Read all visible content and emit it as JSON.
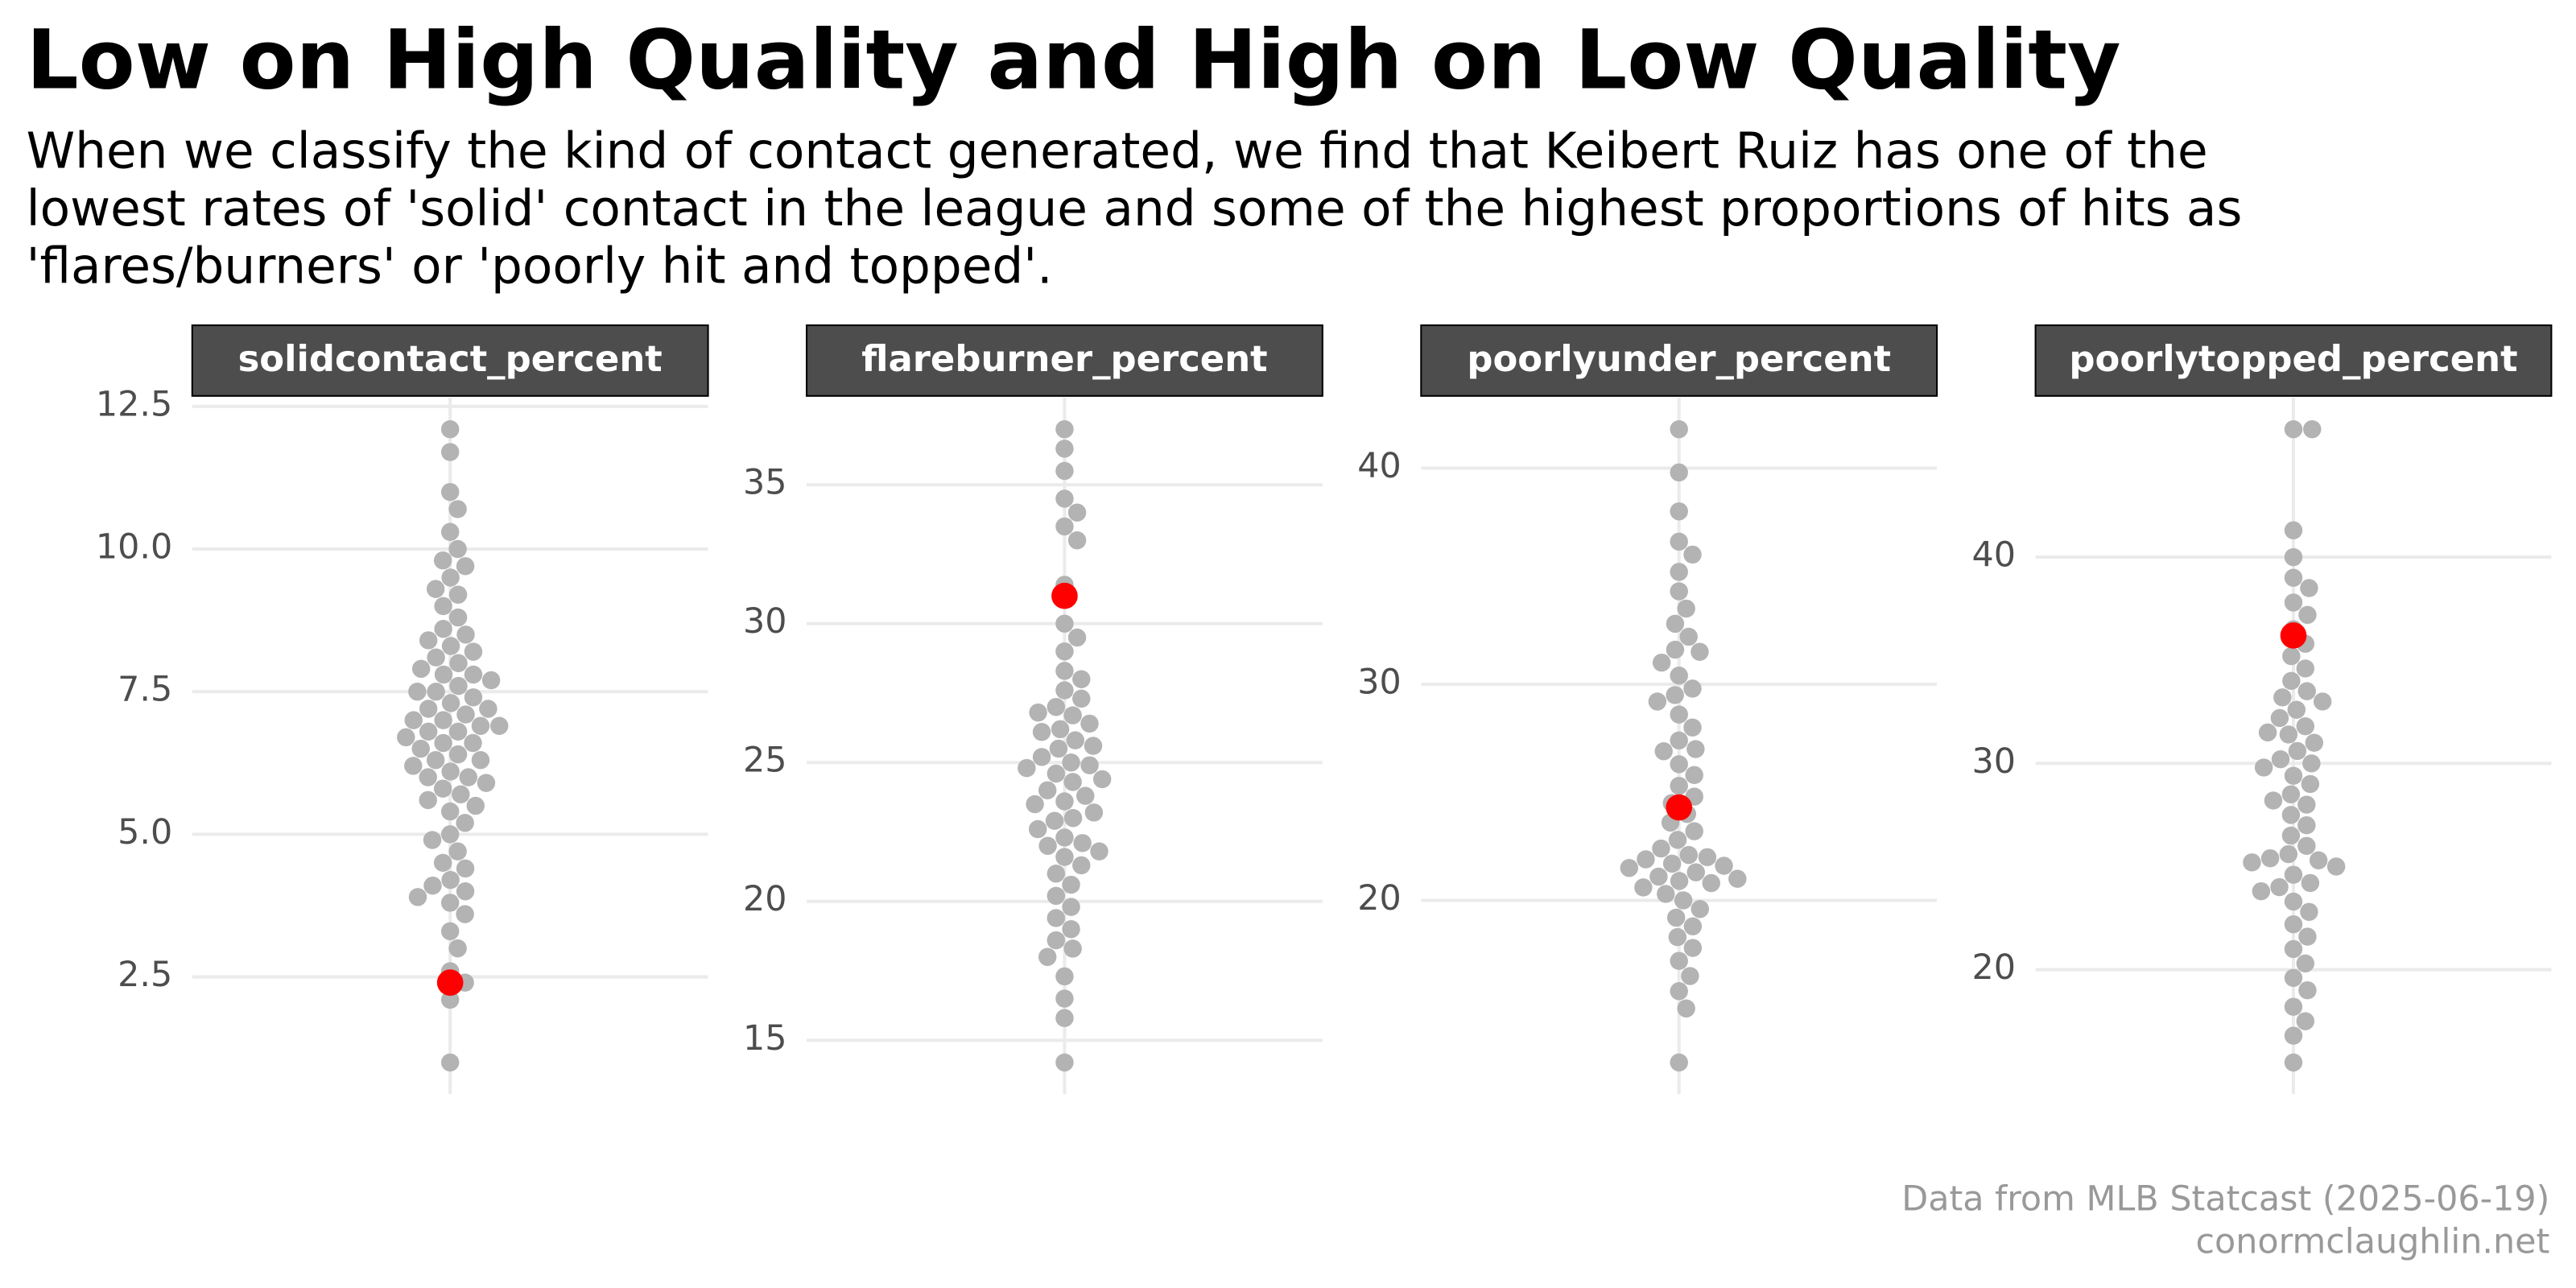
{
  "title": "Low on High Quality and High on Low Quality",
  "subtitle": [
    "When we classify the kind of contact generated, we find that Keibert Ruiz has one of the",
    "lowest rates of 'solid' contact in the league and some of the highest proportions of hits as",
    "'flares/burners' or 'poorly hit and topped'."
  ],
  "caption": [
    "Data from MLB Statcast (2025-06-19)",
    "conormclaughlin.net"
  ],
  "chart_data": [
    {
      "type": "beeswarm",
      "title": "solidcontact_percent",
      "color": "#b3b3b3",
      "ylim": [
        0.445,
        12.655
      ],
      "yticks": [
        2.5,
        {
          "value": 5,
          "label": "5.0"
        },
        7.5,
        {
          "value": 10,
          "label": "10.0"
        },
        12.5
      ],
      "grid": true,
      "values": [
        1.0,
        2.1,
        2.4,
        2.6,
        3.0,
        3.3,
        3.6,
        3.8,
        3.9,
        4.0,
        4.1,
        4.2,
        4.4,
        4.5,
        4.7,
        4.9,
        5.0,
        5.2,
        5.4,
        5.5,
        5.6,
        5.7,
        5.8,
        5.9,
        6.0,
        6.0,
        6.1,
        6.2,
        6.3,
        6.3,
        6.4,
        6.5,
        6.6,
        6.6,
        6.7,
        6.8,
        6.8,
        6.9,
        6.9,
        7.0,
        7.0,
        7.1,
        7.2,
        7.2,
        7.3,
        7.4,
        7.5,
        7.5,
        7.6,
        7.7,
        7.8,
        7.8,
        7.9,
        8.0,
        8.1,
        8.2,
        8.3,
        8.4,
        8.5,
        8.6,
        8.8,
        9.0,
        9.2,
        9.3,
        9.5,
        9.7,
        9.8,
        10.0,
        10.3,
        10.7,
        11.0,
        11.7,
        12.1
      ],
      "highlight": {
        "value": 2.4,
        "color": "#ff0000"
      }
    },
    {
      "type": "beeswarm",
      "title": "flareburner_percent",
      "color": "#b3b3b3",
      "ylim": [
        13.06,
        38.14
      ],
      "yticks": [
        15,
        20,
        25,
        30,
        35
      ],
      "grid": true,
      "values": [
        14.2,
        15.8,
        16.5,
        17.3,
        18.0,
        18.3,
        18.6,
        19.0,
        19.4,
        19.8,
        20.2,
        20.6,
        21.0,
        21.3,
        21.6,
        21.8,
        22.0,
        22.1,
        22.3,
        22.6,
        22.9,
        23.0,
        23.2,
        23.5,
        23.6,
        23.8,
        24.0,
        24.3,
        24.4,
        24.6,
        24.8,
        24.9,
        25.0,
        25.2,
        25.5,
        25.6,
        25.8,
        26.1,
        26.2,
        26.4,
        26.7,
        26.8,
        27.0,
        27.3,
        27.6,
        28.0,
        28.3,
        29.0,
        29.5,
        30.0,
        31.4,
        33.0,
        33.5,
        34.0,
        34.5,
        35.5,
        36.3,
        37.0
      ],
      "highlight": {
        "value": 31.0,
        "color": "#ff0000"
      }
    },
    {
      "type": "beeswarm",
      "title": "poorlyunder_percent",
      "color": "#b3b3b3",
      "ylim": [
        11.035,
        43.265
      ],
      "yticks": [
        20,
        30,
        40
      ],
      "grid": true,
      "values": [
        12.5,
        15.0,
        15.8,
        16.5,
        17.2,
        17.8,
        18.3,
        18.8,
        19.2,
        19.6,
        20.0,
        20.3,
        20.6,
        20.8,
        20.9,
        21.0,
        21.1,
        21.3,
        21.5,
        21.6,
        21.7,
        21.9,
        22.0,
        22.1,
        22.4,
        22.8,
        23.2,
        23.6,
        24.0,
        24.5,
        24.8,
        25.3,
        25.8,
        26.3,
        26.9,
        27.0,
        27.4,
        28.0,
        28.6,
        29.2,
        29.5,
        29.8,
        30.4,
        31.0,
        31.5,
        31.6,
        32.2,
        32.8,
        33.5,
        34.3,
        35.2,
        36.0,
        36.6,
        38.0,
        39.8,
        41.8
      ],
      "highlight": {
        "value": 24.3,
        "color": "#ff0000"
      }
    },
    {
      "type": "beeswarm",
      "title": "poorlytopped_percent",
      "color": "#b3b3b3",
      "ylim": [
        13.965,
        47.735
      ],
      "yticks": [
        20,
        30,
        40
      ],
      "grid": true,
      "values": [
        15.5,
        16.8,
        17.5,
        18.2,
        19.0,
        19.6,
        20.3,
        21.0,
        21.6,
        22.2,
        22.8,
        23.3,
        23.8,
        24.0,
        24.2,
        24.6,
        25.0,
        25.2,
        25.3,
        25.4,
        25.6,
        26.0,
        26.5,
        27.0,
        27.5,
        28.0,
        28.2,
        28.5,
        29.0,
        29.4,
        29.8,
        30.0,
        30.2,
        30.6,
        31.0,
        31.4,
        31.5,
        31.8,
        32.2,
        32.6,
        33.0,
        33.2,
        33.5,
        34.0,
        34.6,
        35.2,
        35.8,
        36.5,
        37.2,
        37.8,
        38.5,
        39.0,
        40.0,
        41.3,
        46.2,
        46.2
      ],
      "highlight": {
        "value": 36.2,
        "color": "#ff0000"
      }
    }
  ]
}
